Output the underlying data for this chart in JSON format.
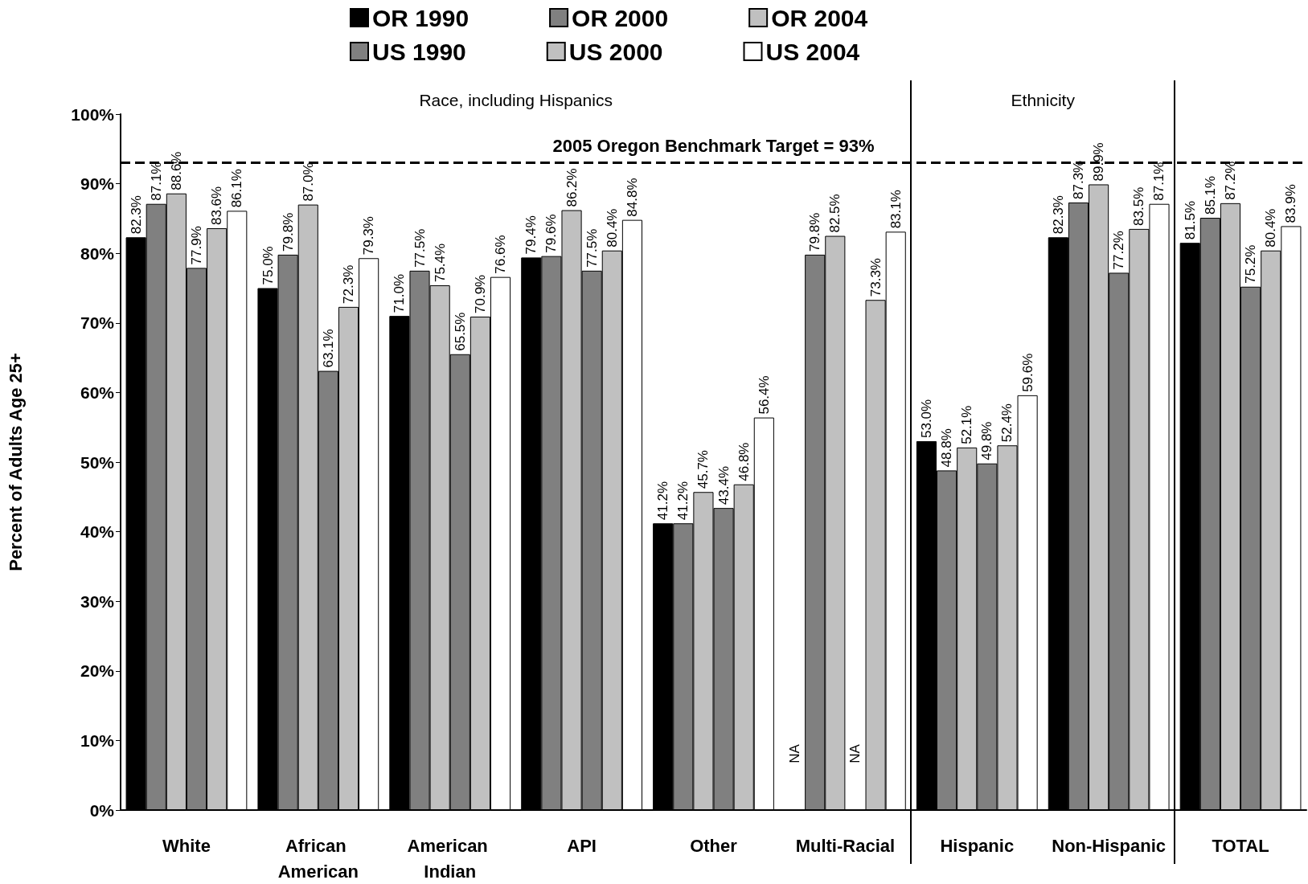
{
  "chart_data": {
    "type": "bar",
    "ylabel": "Percent of Adults Age 25+",
    "categories": [
      "White",
      "African American",
      "American Indian",
      "API",
      "Other",
      "Multi-Racial",
      "Hispanic",
      "Non-Hispanic",
      "TOTAL"
    ],
    "series": [
      {
        "name": "OR 1990",
        "color": "#000000",
        "values": [
          82.3,
          75.0,
          71.0,
          79.4,
          41.2,
          null,
          53.0,
          82.3,
          81.5
        ],
        "value_labels": [
          "82.3%",
          "75.0%",
          "71.0%",
          "79.4%",
          "41.2%",
          "NA",
          "53.0%",
          "82.3%",
          "81.5%"
        ]
      },
      {
        "name": "OR 2000",
        "color": "#808080",
        "values": [
          87.1,
          79.8,
          77.5,
          79.6,
          41.2,
          79.8,
          48.8,
          87.3,
          85.1
        ],
        "value_labels": [
          "87.1%",
          "79.8%",
          "77.5%",
          "79.6%",
          "41.2%",
          "79.8%",
          "48.8%",
          "87.3%",
          "85.1%"
        ]
      },
      {
        "name": "OR 2004",
        "color": "#c0c0c0",
        "values": [
          88.6,
          87.0,
          75.4,
          86.2,
          45.7,
          82.5,
          52.1,
          89.9,
          87.2
        ],
        "value_labels": [
          "88.6%",
          "87.0%",
          "75.4%",
          "86.2%",
          "45.7%",
          "82.5%",
          "52.1%",
          "89.9%",
          "87.2%"
        ]
      },
      {
        "name": "US 1990",
        "color": "#808080",
        "values": [
          77.9,
          63.1,
          65.5,
          77.5,
          43.4,
          null,
          49.8,
          77.2,
          75.2
        ],
        "value_labels": [
          "77.9%",
          "63.1%",
          "65.5%",
          "77.5%",
          "43.4%",
          "NA",
          "49.8%",
          "77.2%",
          "75.2%"
        ]
      },
      {
        "name": "US 2000",
        "color": "#c0c0c0",
        "values": [
          83.6,
          72.3,
          70.9,
          80.4,
          46.8,
          73.3,
          52.4,
          83.5,
          80.4
        ],
        "value_labels": [
          "83.6%",
          "72.3%",
          "70.9%",
          "80.4%",
          "46.8%",
          "73.3%",
          "52.4%",
          "83.5%",
          "80.4%"
        ]
      },
      {
        "name": "US 2004",
        "color": "#ffffff",
        "values": [
          86.1,
          79.3,
          76.6,
          84.8,
          56.4,
          83.1,
          59.6,
          87.1,
          83.9
        ],
        "value_labels": [
          "86.1%",
          "79.3%",
          "76.6%",
          "84.8%",
          "56.4%",
          "83.1%",
          "59.6%",
          "87.1%",
          "83.9%"
        ]
      }
    ],
    "ylim": [
      0,
      100
    ],
    "yticks": [
      {
        "value": 0,
        "label": "0%"
      },
      {
        "value": 10,
        "label": "10%"
      },
      {
        "value": 20,
        "label": "20%"
      },
      {
        "value": 30,
        "label": "30%"
      },
      {
        "value": 40,
        "label": "40%"
      },
      {
        "value": 50,
        "label": "50%"
      },
      {
        "value": 60,
        "label": "60%"
      },
      {
        "value": 70,
        "label": "70%"
      },
      {
        "value": 80,
        "label": "80%"
      },
      {
        "value": 90,
        "label": "90%"
      },
      {
        "value": 100,
        "label": "100%"
      }
    ],
    "ref_lines": [
      {
        "axis": "y",
        "value": 93,
        "label": "2005 Oregon Benchmark Target = 93%",
        "color": "#000000",
        "line_style": "dashed"
      }
    ],
    "annotations": [
      "Race, including Hispanics",
      "Ethnicity"
    ],
    "grid": false,
    "legend": "top"
  }
}
